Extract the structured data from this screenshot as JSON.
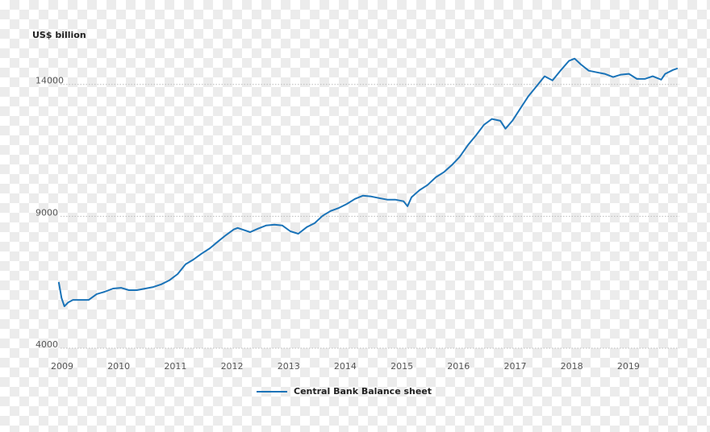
{
  "chart_data": {
    "type": "line",
    "y_axis_title": "US$ billion",
    "x": [
      2008.94,
      2008.99,
      2009.04,
      2009.11,
      2009.19,
      2009.33,
      2009.47,
      2009.61,
      2009.75,
      2009.9,
      2010.04,
      2010.18,
      2010.32,
      2010.47,
      2010.61,
      2010.75,
      2010.89,
      2011.04,
      2011.18,
      2011.32,
      2011.46,
      2011.61,
      2011.75,
      2011.89,
      2012.03,
      2012.1,
      2012.18,
      2012.32,
      2012.46,
      2012.6,
      2012.75,
      2012.89,
      2013.03,
      2013.17,
      2013.32,
      2013.46,
      2013.6,
      2013.74,
      2013.89,
      2014.03,
      2014.17,
      2014.31,
      2014.46,
      2014.6,
      2014.74,
      2014.88,
      2015.03,
      2015.1,
      2015.17,
      2015.31,
      2015.45,
      2015.6,
      2015.74,
      2015.88,
      2016.02,
      2016.17,
      2016.31,
      2016.45,
      2016.59,
      2016.74,
      2016.83,
      2016.95,
      2017.09,
      2017.23,
      2017.37,
      2017.52,
      2017.66,
      2017.8,
      2017.95,
      2018.05,
      2018.16,
      2018.3,
      2018.44,
      2018.58,
      2018.73,
      2018.87,
      2019.01,
      2019.15,
      2019.29,
      2019.43,
      2019.58,
      2019.65,
      2019.79,
      2019.87
    ],
    "series": [
      {
        "name": "Central Bank Balance sheet",
        "color": "#1a73b8",
        "values": [
          6510,
          5900,
          5590,
          5740,
          5830,
          5830,
          5830,
          6050,
          6140,
          6260,
          6290,
          6200,
          6200,
          6260,
          6320,
          6420,
          6570,
          6810,
          7180,
          7360,
          7580,
          7790,
          8040,
          8280,
          8500,
          8560,
          8500,
          8400,
          8530,
          8650,
          8680,
          8650,
          8430,
          8340,
          8590,
          8740,
          9020,
          9200,
          9320,
          9470,
          9660,
          9780,
          9750,
          9690,
          9630,
          9630,
          9570,
          9380,
          9720,
          9990,
          10180,
          10480,
          10670,
          10940,
          11250,
          11710,
          12070,
          12470,
          12690,
          12620,
          12320,
          12620,
          13080,
          13540,
          13910,
          14310,
          14150,
          14520,
          14890,
          14980,
          14760,
          14520,
          14460,
          14400,
          14280,
          14370,
          14400,
          14210,
          14210,
          14310,
          14180,
          14400,
          14550,
          14610
        ]
      }
    ],
    "xlim": [
      2008.9,
      2019.9
    ],
    "xticks": [
      2009,
      2010,
      2011,
      2012,
      2013,
      2014,
      2015,
      2016,
      2017,
      2018,
      2019
    ],
    "ylim": [
      4000,
      15000
    ],
    "yticks": [
      4000,
      9000,
      14000
    ],
    "grid": true,
    "legend": "bottom"
  }
}
